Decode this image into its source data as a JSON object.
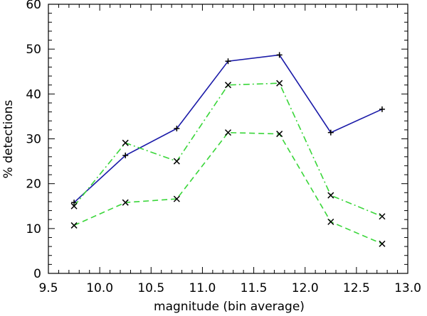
{
  "chart_data": {
    "type": "line",
    "xlabel": "magnitude (bin average)",
    "ylabel": "% detections",
    "xlim": [
      9.5,
      13.0
    ],
    "ylim": [
      0,
      60
    ],
    "xticks": [
      "9.5",
      "10.0",
      "10.5",
      "11.0",
      "11.5",
      "12.0",
      "12.5",
      "13.0"
    ],
    "yticks": [
      "0",
      "10",
      "20",
      "30",
      "40",
      "50",
      "60"
    ],
    "grid": false,
    "legend": "none",
    "x": [
      9.75,
      10.25,
      10.75,
      11.25,
      11.75,
      12.25,
      12.75
    ],
    "series": [
      {
        "values": [
          15.8,
          26.3,
          32.3,
          47.3,
          48.7,
          31.4,
          36.6
        ],
        "color": "#1a1aa8",
        "dash": "solid",
        "marker": "plus"
      },
      {
        "values": [
          15.0,
          29.1,
          25.0,
          42.0,
          42.4,
          17.4,
          12.7
        ],
        "color": "#39d639",
        "dash": "dashdot",
        "marker": "x"
      },
      {
        "values": [
          10.7,
          15.8,
          16.6,
          31.4,
          31.1,
          11.5,
          6.6
        ],
        "color": "#39d639",
        "dash": "dashed",
        "marker": "x"
      }
    ]
  }
}
